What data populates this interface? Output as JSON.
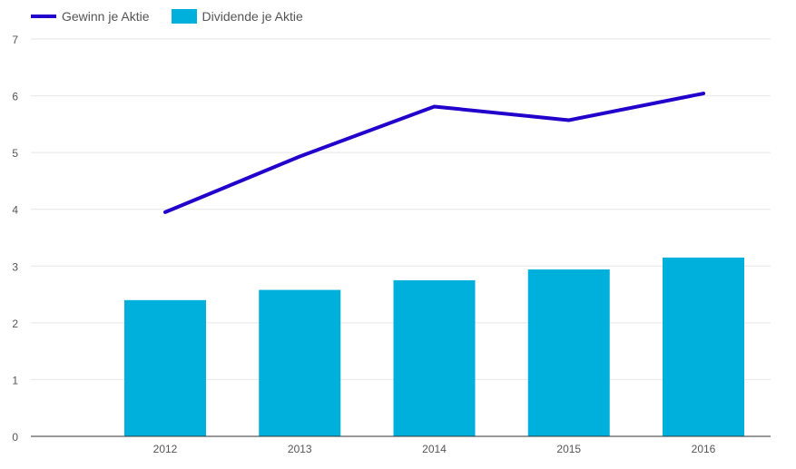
{
  "chart_data": {
    "type": "bar",
    "title": "",
    "xlabel": "",
    "ylabel": "",
    "categories": [
      "2012",
      "2013",
      "2014",
      "2015",
      "2016"
    ],
    "ylim": [
      0,
      7
    ],
    "yticks": [
      "0",
      "1",
      "2",
      "3",
      "4",
      "5",
      "6",
      "7"
    ],
    "series": [
      {
        "name": "Gewinn je Aktie",
        "kind": "line",
        "color": "#2200cc",
        "values": [
          3.95,
          4.93,
          5.81,
          5.57,
          6.04
        ]
      },
      {
        "name": "Dividende je Aktie",
        "kind": "bar",
        "color": "#00b0dc",
        "values": [
          2.4,
          2.58,
          2.75,
          2.94,
          3.15
        ]
      }
    ],
    "grid": true,
    "legend": "top-left"
  }
}
